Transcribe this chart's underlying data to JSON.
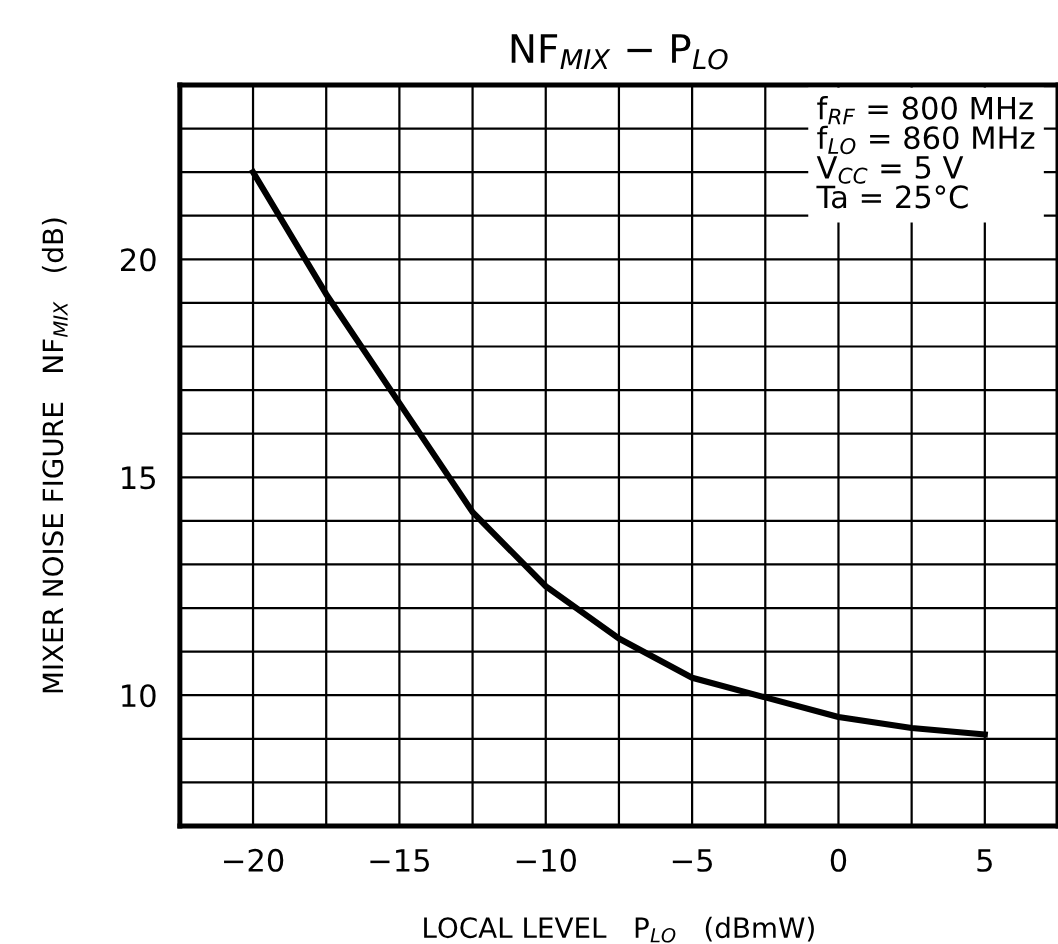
{
  "chart_data": {
    "type": "line",
    "title": "NF$_{MIX}$ − P$_{LO}$",
    "xlabel": "LOCAL LEVEL   P$_{LO}$   (dBmW)",
    "ylabel": "MIXER NOISE FIGURE   NF$_{MIX}$   (dB)",
    "annotations": [
      "f$_{RF}$ = 800 MHz",
      "f$_{LO}$ = 860 MHz",
      "V$_{CC}$ = 5 V",
      "Ta = 25°C"
    ],
    "x": [
      -20,
      -17.5,
      -15,
      -12.5,
      -10,
      -7.5,
      -5,
      -2.5,
      0,
      2.5,
      5
    ],
    "series": [
      {
        "color": "#000000",
        "values": [
          22.0,
          19.2,
          16.7,
          14.2,
          12.5,
          11.3,
          10.4,
          9.95,
          9.5,
          9.25,
          9.1
        ]
      }
    ],
    "xlim": [
      -22.5,
      7.5
    ],
    "ylim": [
      7,
      24
    ],
    "xticks": [
      {
        "value": -22.5,
        "label": null
      },
      {
        "value": -20,
        "label": "−20"
      },
      {
        "value": -17.5,
        "label": null
      },
      {
        "value": -15,
        "label": "−15"
      },
      {
        "value": -12.5,
        "label": null
      },
      {
        "value": -10,
        "label": "−10"
      },
      {
        "value": -7.5,
        "label": null
      },
      {
        "value": -5,
        "label": "−5"
      },
      {
        "value": -2.5,
        "label": null
      },
      0,
      {
        "value": 2.5,
        "label": null
      },
      5,
      {
        "value": 7.5,
        "label": null
      }
    ],
    "yticks": [
      {
        "value": 8,
        "label": null
      },
      {
        "value": 9,
        "label": null
      },
      10,
      {
        "value": 11,
        "label": null
      },
      {
        "value": 12,
        "label": null
      },
      {
        "value": 13,
        "label": null
      },
      {
        "value": 14,
        "label": null
      },
      15,
      {
        "value": 16,
        "label": null
      },
      {
        "value": 17,
        "label": null
      },
      {
        "value": 18,
        "label": null
      },
      {
        "value": 19,
        "label": null
      },
      20,
      {
        "value": 21,
        "label": null
      },
      {
        "value": 22,
        "label": null
      },
      {
        "value": 23,
        "label": null
      }
    ],
    "grid": true,
    "marker": "none",
    "line_style": "solid"
  }
}
